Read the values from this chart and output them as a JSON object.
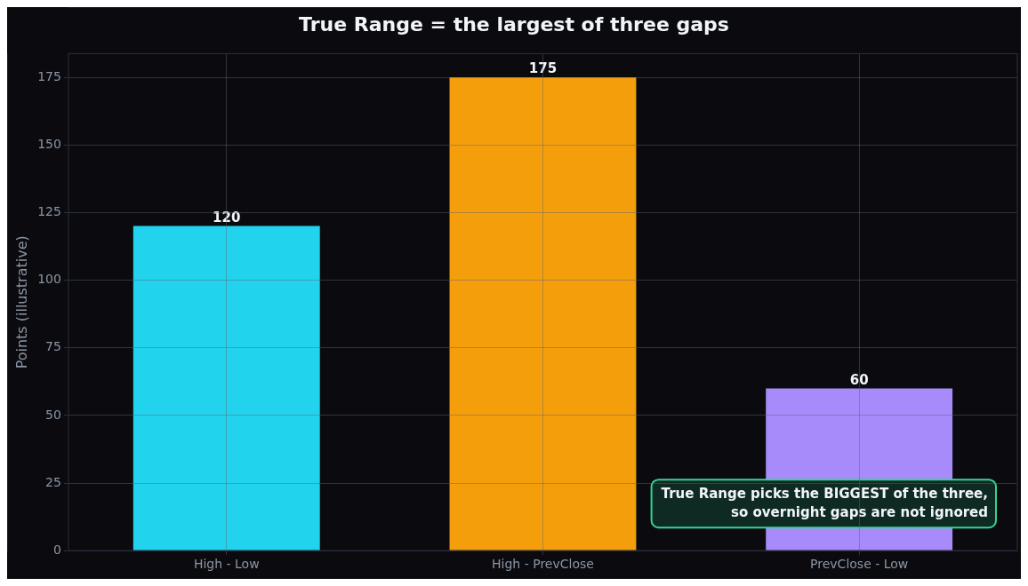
{
  "chart_data": {
    "type": "bar",
    "title": "True Range = the largest of three gaps",
    "ylabel": "Points (illustrative)",
    "categories": [
      "High - Low",
      "High - PrevClose",
      "PrevClose - Low"
    ],
    "values": [
      120,
      175,
      60
    ],
    "colors": [
      "#22d3ee",
      "#f59e0b",
      "#a78bfa"
    ],
    "ylim": [
      0,
      183.75
    ],
    "yticks": [
      0,
      25,
      50,
      75,
      100,
      125,
      150,
      175
    ],
    "grid": true,
    "data_labels": true,
    "legend": false,
    "annotations": [
      "True Range picks the BIGGEST of the three,\nso overnight gaps are not ignored"
    ]
  }
}
